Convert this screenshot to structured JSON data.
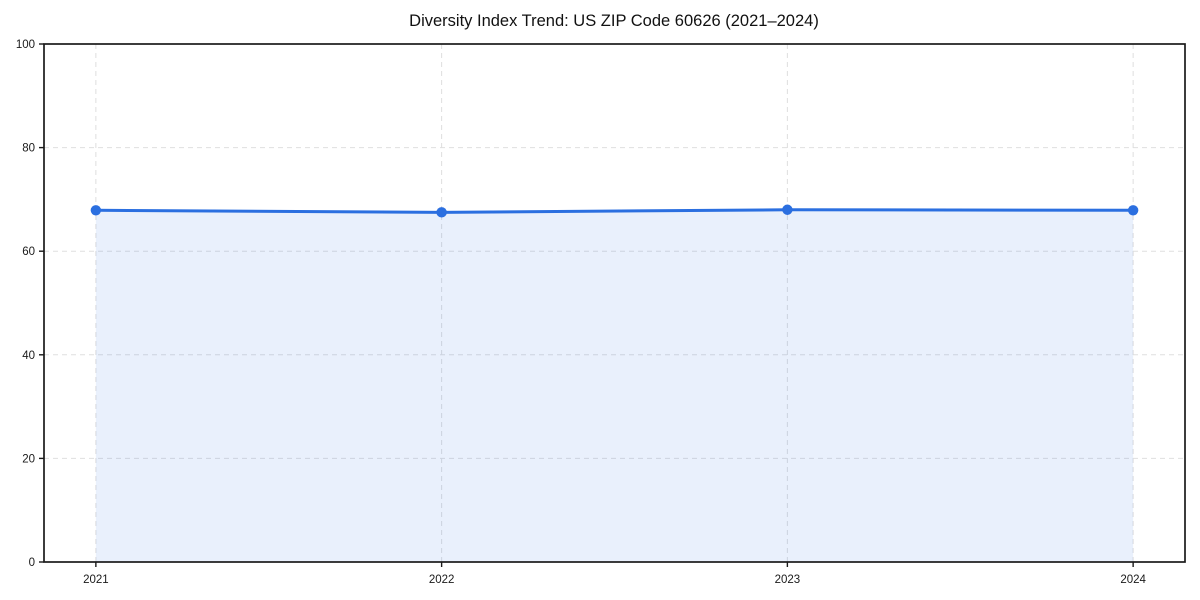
{
  "figure": {
    "background": "#ffffff"
  },
  "chart_data": {
    "type": "area",
    "title": "Diversity Index Trend: US ZIP Code 60626 (2021–2024)",
    "xlabel": "",
    "ylabel": "",
    "x": [
      2021,
      2022,
      2023,
      2024
    ],
    "series": [
      {
        "name": "Diversity Index",
        "values": [
          67.9,
          67.5,
          68.0,
          67.9
        ]
      }
    ],
    "xticks": [
      2021,
      2022,
      2023,
      2024
    ],
    "yticks": [
      0,
      20,
      40,
      60,
      80,
      100
    ],
    "xlim": [
      2020.85,
      2024.15
    ],
    "ylim": [
      0,
      100
    ],
    "grid": "dashed",
    "legend": "none",
    "colors": {
      "line": "#2b6fe0",
      "marker": "#2b6fe0",
      "fill": "rgba(43,111,224,0.10)",
      "gridline": "#dfdfdf",
      "spine": "#1a1a1a",
      "tick_label": "#1a1a1a"
    }
  }
}
